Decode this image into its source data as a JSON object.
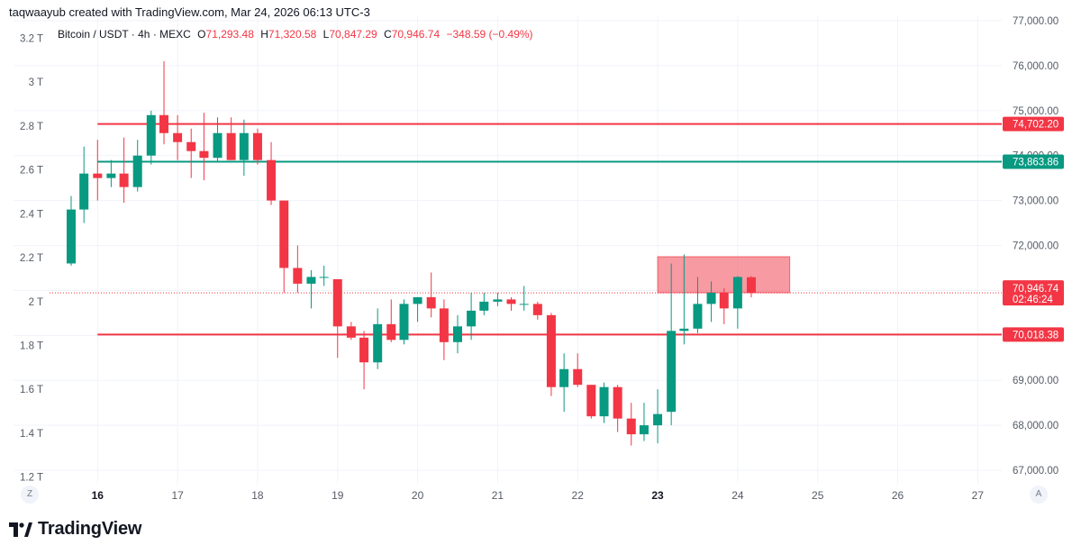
{
  "credit": "taqwaayub created with TradingView.com, Mar 24, 2026 06:13 UTC-3",
  "legend": {
    "symbol": "Bitcoin / USDT · 4h · MEXC",
    "open_label": "O",
    "open": "71,293.48",
    "high_label": "H",
    "high": "71,320.58",
    "low_label": "L",
    "low": "70,847.29",
    "close_label": "C",
    "close": "70,946.74",
    "change": "−348.59 (−0.49%)"
  },
  "buttons": {
    "left": "Z",
    "right": "A"
  },
  "logo_text": "TradingView",
  "colors": {
    "up": "#089981",
    "down": "#f23645",
    "grid": "#f0f3fa",
    "text": "#131722",
    "axis_text": "#555b66"
  },
  "chart_data": {
    "type": "candlestick",
    "timeframe": "4h",
    "price_axis": {
      "range": [
        66700,
        77100
      ],
      "ticks": [
        77000,
        76000,
        75000,
        74000,
        73000,
        72000,
        71000,
        70000,
        69000,
        68000,
        67000
      ],
      "tick_labels": [
        "77,000.00",
        "76,000.00",
        "75,000.00",
        "74,000.00",
        "73,000.00",
        "72,000.00",
        "71,000.00",
        "70,000.00",
        "69,000.00",
        "68,000.00",
        "67,000.00"
      ]
    },
    "volume_axis": {
      "range": [
        1.17,
        3.3
      ],
      "ticks": [
        3.2,
        3.0,
        2.8,
        2.6,
        2.4,
        2.2,
        2.0,
        1.8,
        1.6,
        1.4,
        1.2
      ],
      "tick_labels": [
        "3.2 T",
        "3 T",
        "2.8 T",
        "2.6 T",
        "2.4 T",
        "2.2 T",
        "2 T",
        "1.8 T",
        "1.6 T",
        "1.4 T",
        "1.2 T"
      ]
    },
    "time_axis": {
      "range": [
        15.4,
        27.3
      ],
      "ticks": [
        16,
        17,
        18,
        19,
        20,
        21,
        22,
        23,
        24,
        25,
        26,
        27
      ],
      "tick_labels": [
        "16",
        "17",
        "18",
        "19",
        "20",
        "21",
        "22",
        "23",
        "24",
        "25",
        "26",
        "27"
      ],
      "bold": [
        "16",
        "23"
      ]
    },
    "candles": [
      {
        "t": 15.67,
        "o": 71600,
        "h": 73100,
        "l": 71550,
        "c": 72800
      },
      {
        "t": 15.83,
        "o": 72800,
        "h": 74200,
        "l": 72500,
        "c": 73600
      },
      {
        "t": 16.0,
        "o": 73600,
        "h": 74350,
        "l": 73000,
        "c": 73500
      },
      {
        "t": 16.17,
        "o": 73500,
        "h": 73900,
        "l": 73300,
        "c": 73600
      },
      {
        "t": 16.33,
        "o": 73600,
        "h": 74400,
        "l": 72950,
        "c": 73300
      },
      {
        "t": 16.5,
        "o": 73300,
        "h": 74350,
        "l": 73200,
        "c": 74000
      },
      {
        "t": 16.67,
        "o": 74000,
        "h": 75000,
        "l": 73800,
        "c": 74900
      },
      {
        "t": 16.83,
        "o": 74900,
        "h": 76100,
        "l": 74250,
        "c": 74500
      },
      {
        "t": 17.0,
        "o": 74500,
        "h": 74900,
        "l": 73900,
        "c": 74300
      },
      {
        "t": 17.17,
        "o": 74300,
        "h": 74600,
        "l": 73500,
        "c": 74100
      },
      {
        "t": 17.33,
        "o": 74100,
        "h": 74950,
        "l": 73450,
        "c": 73950
      },
      {
        "t": 17.5,
        "o": 73950,
        "h": 74850,
        "l": 73850,
        "c": 74500
      },
      {
        "t": 17.67,
        "o": 74500,
        "h": 74850,
        "l": 73900,
        "c": 73900
      },
      {
        "t": 17.83,
        "o": 73900,
        "h": 74800,
        "l": 73550,
        "c": 74500
      },
      {
        "t": 18.0,
        "o": 74500,
        "h": 74600,
        "l": 73800,
        "c": 73900
      },
      {
        "t": 18.17,
        "o": 73900,
        "h": 74300,
        "l": 72900,
        "c": 73000
      },
      {
        "t": 18.33,
        "o": 73000,
        "h": 73000,
        "l": 70950,
        "c": 71500
      },
      {
        "t": 18.5,
        "o": 71500,
        "h": 72000,
        "l": 70950,
        "c": 71150
      },
      {
        "t": 18.67,
        "o": 71150,
        "h": 71450,
        "l": 70600,
        "c": 71300
      },
      {
        "t": 18.83,
        "o": 71300,
        "h": 71550,
        "l": 71100,
        "c": 71300
      },
      {
        "t": 19.0,
        "o": 71250,
        "h": 71250,
        "l": 69500,
        "c": 70200
      },
      {
        "t": 19.17,
        "o": 70200,
        "h": 70300,
        "l": 69900,
        "c": 69950
      },
      {
        "t": 19.33,
        "o": 69950,
        "h": 70100,
        "l": 68800,
        "c": 69400
      },
      {
        "t": 19.5,
        "o": 69400,
        "h": 70600,
        "l": 69250,
        "c": 70250
      },
      {
        "t": 19.67,
        "o": 70250,
        "h": 70800,
        "l": 69850,
        "c": 69900
      },
      {
        "t": 19.83,
        "o": 69900,
        "h": 70800,
        "l": 69800,
        "c": 70700
      },
      {
        "t": 20.0,
        "o": 70700,
        "h": 70850,
        "l": 70300,
        "c": 70850
      },
      {
        "t": 20.17,
        "o": 70850,
        "h": 71400,
        "l": 70400,
        "c": 70600
      },
      {
        "t": 20.33,
        "o": 70600,
        "h": 70800,
        "l": 69450,
        "c": 69850
      },
      {
        "t": 20.5,
        "o": 69850,
        "h": 70450,
        "l": 69600,
        "c": 70200
      },
      {
        "t": 20.67,
        "o": 70200,
        "h": 70950,
        "l": 69900,
        "c": 70550
      },
      {
        "t": 20.83,
        "o": 70550,
        "h": 70950,
        "l": 70450,
        "c": 70750
      },
      {
        "t": 21.0,
        "o": 70750,
        "h": 70950,
        "l": 70650,
        "c": 70800
      },
      {
        "t": 21.17,
        "o": 70800,
        "h": 70850,
        "l": 70550,
        "c": 70700
      },
      {
        "t": 21.33,
        "o": 70700,
        "h": 71100,
        "l": 70550,
        "c": 70700
      },
      {
        "t": 21.5,
        "o": 70700,
        "h": 70750,
        "l": 70350,
        "c": 70450
      },
      {
        "t": 21.67,
        "o": 70450,
        "h": 70500,
        "l": 68650,
        "c": 68850
      },
      {
        "t": 21.83,
        "o": 68850,
        "h": 69600,
        "l": 68300,
        "c": 69250
      },
      {
        "t": 22.0,
        "o": 69250,
        "h": 69600,
        "l": 68850,
        "c": 68900
      },
      {
        "t": 22.17,
        "o": 68900,
        "h": 68900,
        "l": 68150,
        "c": 68200
      },
      {
        "t": 22.33,
        "o": 68200,
        "h": 68950,
        "l": 68050,
        "c": 68850
      },
      {
        "t": 22.5,
        "o": 68850,
        "h": 68900,
        "l": 67850,
        "c": 68150
      },
      {
        "t": 22.67,
        "o": 68150,
        "h": 68500,
        "l": 67550,
        "c": 67800
      },
      {
        "t": 22.83,
        "o": 67800,
        "h": 68500,
        "l": 67650,
        "c": 68000
      },
      {
        "t": 23.0,
        "o": 68000,
        "h": 68800,
        "l": 67600,
        "c": 68250
      },
      {
        "t": 23.17,
        "o": 68300,
        "h": 71600,
        "l": 68000,
        "c": 70100
      },
      {
        "t": 23.33,
        "o": 70100,
        "h": 71800,
        "l": 69800,
        "c": 70150
      },
      {
        "t": 23.5,
        "o": 70150,
        "h": 71300,
        "l": 70050,
        "c": 70700
      },
      {
        "t": 23.67,
        "o": 70700,
        "h": 71200,
        "l": 70300,
        "c": 70950
      },
      {
        "t": 23.83,
        "o": 70950,
        "h": 71050,
        "l": 70250,
        "c": 70600
      },
      {
        "t": 24.0,
        "o": 70600,
        "h": 71320,
        "l": 70150,
        "c": 71300
      },
      {
        "t": 24.17,
        "o": 71293.48,
        "h": 71320.58,
        "l": 70847.29,
        "c": 70946.74
      }
    ],
    "horizontal_lines": [
      {
        "price": 74702.2,
        "label": "74,702.20",
        "color": "#f23645"
      },
      {
        "price": 73863.86,
        "label": "73,863.86",
        "color": "#089981"
      },
      {
        "price": 70018.38,
        "label": "70,018.38",
        "color": "#f23645"
      }
    ],
    "last_price": {
      "price": 70946.74,
      "label": "70,946.74",
      "countdown": "02:46:24",
      "color": "#f23645"
    },
    "zone": {
      "t_start": 23.0,
      "t_end": 24.65,
      "price_low": 70950,
      "price_high": 71750,
      "color": "#f23645"
    }
  }
}
